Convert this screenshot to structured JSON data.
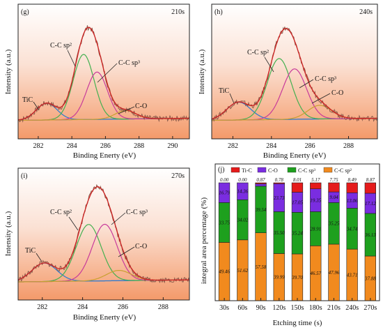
{
  "colors": {
    "raw": "#8b5a4a",
    "envelope": "#cc2222",
    "sp2": "#44b050",
    "sp3": "#c83a9a",
    "co": "#c8a030",
    "tic": "#2a7ad0",
    "background": "#2f6fd8",
    "bar_tic": "#e51b1b",
    "bar_co": "#7a2de0",
    "bar_sp3": "#1ea01e",
    "bar_sp2": "#f18a1e"
  },
  "panels": [
    {
      "id": "g",
      "panel_label": "(g)",
      "time_label": "210s",
      "xlabel": "Binding Enerty (eV)",
      "ylabel": "Intensity (a.u.)",
      "ticks": [
        "282",
        "284",
        "286",
        "288",
        "290"
      ],
      "annotations": {
        "tic": "TiC",
        "sp2": "C-C sp²",
        "sp3": "C-C sp³",
        "co": "C-O"
      }
    },
    {
      "id": "h",
      "panel_label": "(h)",
      "time_label": "240s",
      "xlabel": "Binding Enerty (eV)",
      "ylabel": "Intensity (a.u.)",
      "ticks": [
        "282",
        "284",
        "286",
        "288"
      ],
      "annotations": {
        "tic": "TiC",
        "sp2": "C-C sp²",
        "sp3": "C-C sp³",
        "co": "C-O"
      }
    },
    {
      "id": "i",
      "panel_label": "(i)",
      "time_label": "270s",
      "xlabel": "Binding Enerty (eV)",
      "ylabel": "Intensity (a.u.)",
      "ticks": [
        "282",
        "284",
        "286",
        "288"
      ],
      "annotations": {
        "tic": "TiC",
        "sp2": "C-C sp²",
        "sp3": "C-C sp³",
        "co": "C-O"
      }
    }
  ],
  "chart_data": [
    {
      "type": "line",
      "panel": "(g)",
      "xlabel": "Binding Enerty (eV)",
      "ylabel": "Intensity (a.u.)",
      "xlim": [
        280.8,
        291
      ],
      "peaks": [
        {
          "name": "TiC",
          "center": 282.5,
          "height": 0.16
        },
        {
          "name": "C-C sp²",
          "center": 284.7,
          "height": 0.62
        },
        {
          "name": "C-C sp³",
          "center": 285.5,
          "height": 0.45
        },
        {
          "name": "C-O",
          "center": 287.2,
          "height": 0.08
        }
      ]
    },
    {
      "type": "line",
      "panel": "(h)",
      "xlabel": "Binding Enerty (eV)",
      "ylabel": "Intensity (a.u.)",
      "xlim": [
        280.9,
        289.5
      ],
      "peaks": [
        {
          "name": "TiC",
          "center": 282.3,
          "height": 0.17
        },
        {
          "name": "C-C sp²",
          "center": 284.4,
          "height": 0.58
        },
        {
          "name": "C-C sp³",
          "center": 285.2,
          "height": 0.48
        },
        {
          "name": "C-O",
          "center": 286.5,
          "height": 0.13
        }
      ]
    },
    {
      "type": "line",
      "panel": "(i)",
      "xlabel": "Binding Enerty (eV)",
      "ylabel": "Intensity (a.u.)",
      "xlim": [
        280.8,
        289.3
      ],
      "peaks": [
        {
          "name": "TiC",
          "center": 282.1,
          "height": 0.18
        },
        {
          "name": "C-C sp²",
          "center": 284.3,
          "height": 0.55
        },
        {
          "name": "C-C sp³",
          "center": 285.1,
          "height": 0.55
        },
        {
          "name": "C-O",
          "center": 285.8,
          "height": 0.1
        }
      ]
    },
    {
      "type": "bar",
      "panel": "(j)",
      "stacked": true,
      "xlabel": "Etching time (s)",
      "ylabel": "integral area percentage (%)",
      "ylim": [
        0,
        100
      ],
      "categories": [
        "30s",
        "60s",
        "90s",
        "120s",
        "150s",
        "180s",
        "210s",
        "240s",
        "270s"
      ],
      "series": [
        {
          "name": "C-C sp²",
          "values": [
            49.46,
            51.62,
            57.58,
            39.99,
            39.7,
            46.57,
            47.96,
            43.71,
            37.88
          ],
          "labels": [
            "49.46",
            "51.62",
            "57.58",
            "39.99",
            "39.70",
            "46.57",
            "47.96",
            "43.71",
            "37.88"
          ]
        },
        {
          "name": "C-C sp³",
          "values": [
            33.75,
            34.02,
            39.54,
            35.5,
            35.24,
            28.91,
            35.25,
            34.74,
            36.13
          ],
          "labels": [
            "33.75",
            "34.02",
            "39.54",
            "35.50",
            "35.24",
            "28.91",
            "35.25",
            "34.74",
            "36.13"
          ]
        },
        {
          "name": "C-O",
          "values": [
            16.79,
            14.36,
            2.01,
            23.73,
            17.05,
            19.35,
            9.04,
            13.06,
            17.12
          ],
          "labels": [
            "16.79",
            "14.36",
            "",
            "23.73",
            "17.05",
            "19.35",
            "9.04",
            "13.06",
            "17.12"
          ]
        },
        {
          "name": "Ti-C",
          "values": [
            0.0,
            0.0,
            0.87,
            0.78,
            8.01,
            5.17,
            7.75,
            8.49,
            8.87
          ],
          "labels": [
            "0.00",
            "0.00",
            "0.87",
            "0.78",
            "8.01",
            "5.17",
            "7.75",
            "8.49",
            "8.87"
          ]
        }
      ],
      "legend": [
        "Ti-C",
        "C-O",
        "C-C sp³",
        "C-C sp²"
      ],
      "legend_position": "top"
    }
  ],
  "bar_panel": {
    "panel_label": "(j)",
    "xlabel": "Etching time (s)",
    "ylabel": "integral area percentage (%)"
  }
}
